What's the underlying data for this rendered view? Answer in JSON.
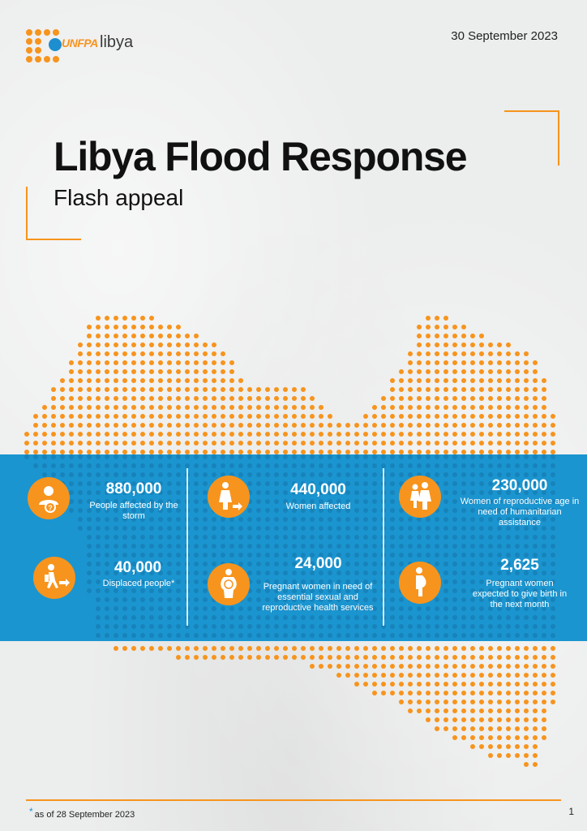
{
  "header": {
    "logo_brand": "UNFPA",
    "logo_country": "libya",
    "date": "30 September 2023"
  },
  "title": "Libya Flood Response",
  "subtitle": "Flash appeal",
  "stats": [
    {
      "value": "880,000",
      "label": "People affected by the storm",
      "icon": "person-question-icon"
    },
    {
      "value": "40,000",
      "label": "Displaced people*",
      "icon": "displaced-person-icon"
    },
    {
      "value": "440,000",
      "label": "Women affected",
      "icon": "woman-arrow-icon"
    },
    {
      "value": "24,000",
      "label": "Pregnant women in need of essential sexual and reproductive health services",
      "icon": "pregnant-woman-icon"
    },
    {
      "value": "230,000",
      "label": "Women of reproductive age in need of humanitarian assistance",
      "icon": "two-women-icon"
    },
    {
      "value": "2,625",
      "label": "Pregnant women expected to give birth in the next month",
      "icon": "pregnant-woman-side-icon"
    }
  ],
  "footer": {
    "footnote_marker": "*",
    "footnote": "as of 28 September 2023",
    "page_number": "1"
  },
  "colors": {
    "accent_orange": "#f7941d",
    "band_blue": "#1b95d0",
    "un_blue": "#1d8ed0"
  }
}
